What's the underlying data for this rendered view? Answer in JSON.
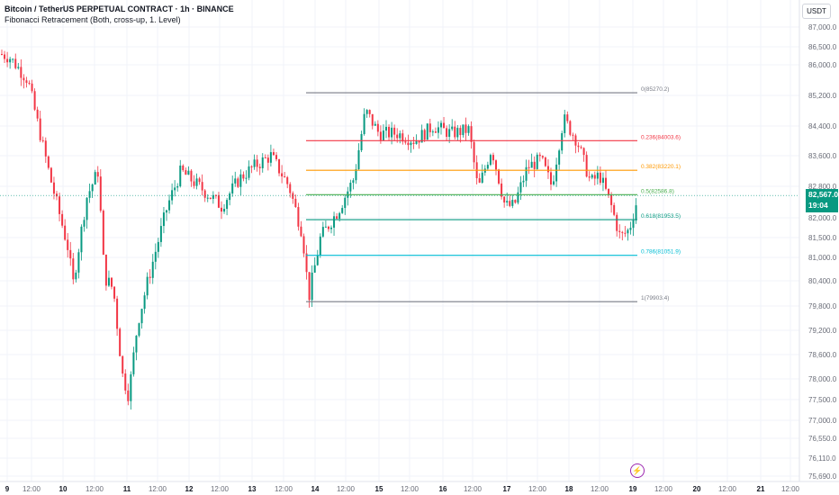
{
  "legend": {
    "symbol_line": "Bitcoin / TetherUS PERPETUAL CONTRACT · 1h · BINANCE",
    "indicator_line": "Fibonacci Retracement (Both, cross-up, 1. Level)"
  },
  "currency_button": "USDT",
  "last_price": {
    "price": "82,567.0",
    "countdown": "19:04",
    "value": 82567.0
  },
  "price_axis_labels": [
    "87,000.0",
    "86,500.0",
    "86,000.0",
    "85,200.0",
    "84,400.0",
    "83,600.0",
    "82,800.0",
    "82,000.0",
    "81,500.0",
    "81,000.0",
    "80,400.0",
    "79,800.0",
    "79,200.0",
    "78,600.0",
    "78,000.0",
    "77,500.0",
    "77,000.0",
    "76,550.0",
    "76,110.0",
    "75,690.0"
  ],
  "time_axis_labels": [
    "9",
    "12:00",
    "10",
    "12:00",
    "11",
    "12:00",
    "12",
    "12:00",
    "13",
    "12:00",
    "14",
    "12:00",
    "15",
    "12:00",
    "16",
    "12:00",
    "17",
    "12:00",
    "18",
    "12:00",
    "19",
    "12:00",
    "20",
    "12:00",
    "21",
    "12:00"
  ],
  "fib_levels": [
    {
      "label": "0(85270.2)",
      "price": 85270.2,
      "color": "#787b86"
    },
    {
      "label": "0.236(84003.6)",
      "price": 84003.6,
      "color": "#f23645"
    },
    {
      "label": "0.382(83220.1)",
      "price": 83220.1,
      "color": "#ff9800"
    },
    {
      "label": "0.5(82586.8)",
      "price": 82586.8,
      "color": "#4caf50"
    },
    {
      "label": "0.618(81953.5)",
      "price": 81953.5,
      "color": "#089981"
    },
    {
      "label": "0.786(81051.9)",
      "price": 81051.9,
      "color": "#00bcd4"
    },
    {
      "label": "1(79903.4)",
      "price": 79903.4,
      "color": "#787b86"
    }
  ],
  "colors": {
    "up": "#089981",
    "down": "#f23645",
    "text": "#131722",
    "axis_text": "#6a6d78"
  },
  "icons": {
    "events": "lightning-icon"
  },
  "chart_data": {
    "type": "candlestick",
    "title": "Bitcoin / TetherUS PERPETUAL CONTRACT · 1h · BINANCE",
    "interval": "1h",
    "x_range": [
      "9",
      "21 12:00"
    ],
    "y_range": [
      75690,
      87000
    ],
    "last_price": 82567.0,
    "fibonacci": [
      0,
      0.236,
      0.382,
      0.5,
      0.618,
      0.786,
      1
    ],
    "fib_high": 85270.2,
    "fib_low": 79903.4
  }
}
